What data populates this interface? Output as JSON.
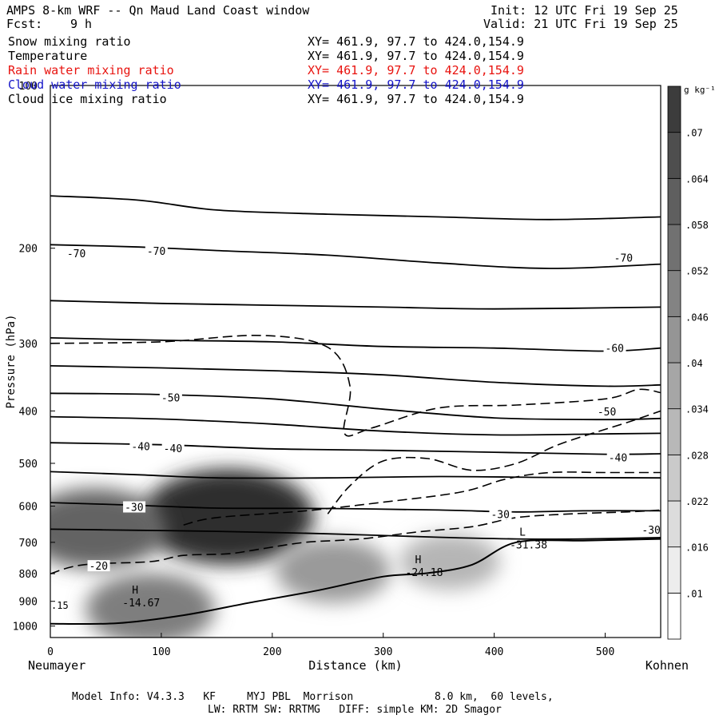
{
  "header": {
    "title": "AMPS 8-km WRF -- Qn Maud Land Coast window",
    "fcst_label": "Fcst:",
    "fcst_value": "9 h",
    "init": "Init: 12 UTC Fri 19 Sep 25",
    "valid": "Valid: 21 UTC Fri 19 Sep 25"
  },
  "fields": [
    {
      "label": "Snow mixing ratio",
      "xy": "XY= 461.9, 97.7 to 424.0,154.9",
      "color": "#000000"
    },
    {
      "label": "Temperature",
      "xy": "XY= 461.9, 97.7 to 424.0,154.9",
      "color": "#000000"
    },
    {
      "label": "Rain water mixing ratio",
      "xy": "XY= 461.9, 97.7 to 424.0,154.9",
      "color": "#e8130f"
    },
    {
      "label": "Cloud water mixing ratio",
      "xy": "XY= 461.9, 97.7 to 424.0,154.9",
      "color": "#1414c8"
    },
    {
      "label": "Cloud ice mixing ratio",
      "xy": "XY= 461.9, 97.7 to 424.0,154.9",
      "color": "#000000"
    }
  ],
  "footer": {
    "line1": "Model Info: V4.3.3   KF     MYJ PBL  Morrison             8.0 km,  60 levels,",
    "line2": "LW: RRTM SW: RRTMG   DIFF: simple KM: 2D Smagor"
  },
  "chart_data": {
    "type": "cross-section",
    "xlabel": "Distance (km)",
    "ylabel": "Pressure (hPa)",
    "xlim": [
      0,
      550
    ],
    "ylim": [
      1050,
      100
    ],
    "x_ticks": [
      0,
      100,
      200,
      300,
      400,
      500
    ],
    "y_ticks": [
      100,
      200,
      300,
      400,
      500,
      600,
      700,
      800,
      900,
      1000
    ],
    "left_end_label": "Neumayer",
    "right_end_label": "Kohnen",
    "colorbar": {
      "unit": "g kg⁻¹",
      "ticks": [
        ".01",
        ".016",
        ".022",
        ".028",
        ".034",
        ".04",
        ".046",
        ".052",
        ".058",
        ".064",
        ".07"
      ]
    },
    "temperature_isotherms": [
      {
        "value": -70,
        "points": [
          [
            0,
            160
          ],
          [
            80,
            163
          ],
          [
            150,
            170
          ],
          [
            250,
            173
          ],
          [
            350,
            175
          ],
          [
            450,
            177
          ],
          [
            550,
            175
          ]
        ]
      },
      {
        "value": -70,
        "points": [
          [
            0,
            197
          ],
          [
            80,
            199
          ],
          [
            150,
            202
          ],
          [
            250,
            206
          ],
          [
            350,
            213
          ],
          [
            450,
            218
          ],
          [
            550,
            214
          ]
        ]
      },
      {
        "value": -70,
        "points": [
          [
            0,
            250
          ],
          [
            100,
            253
          ],
          [
            200,
            255
          ],
          [
            300,
            257
          ],
          [
            400,
            259
          ],
          [
            550,
            257
          ]
        ]
      },
      {
        "value": -60,
        "points": [
          [
            0,
            293
          ],
          [
            100,
            296
          ],
          [
            200,
            298
          ],
          [
            300,
            304
          ],
          [
            400,
            306
          ],
          [
            500,
            310
          ],
          [
            550,
            306
          ]
        ]
      },
      {
        "value": -60,
        "points": [
          [
            0,
            330
          ],
          [
            100,
            333
          ],
          [
            200,
            337
          ],
          [
            300,
            343
          ],
          [
            400,
            354
          ],
          [
            500,
            360
          ],
          [
            550,
            358
          ]
        ]
      },
      {
        "value": -50,
        "points": [
          [
            0,
            371
          ],
          [
            100,
            373
          ],
          [
            200,
            380
          ],
          [
            300,
            397
          ],
          [
            400,
            412
          ],
          [
            500,
            415
          ],
          [
            550,
            413
          ]
        ]
      },
      {
        "value": -50,
        "points": [
          [
            0,
            410
          ],
          [
            100,
            414
          ],
          [
            200,
            423
          ],
          [
            300,
            436
          ],
          [
            400,
            443
          ],
          [
            500,
            441
          ],
          [
            550,
            440
          ]
        ]
      },
      {
        "value": -40,
        "points": [
          [
            0,
            458
          ],
          [
            100,
            462
          ],
          [
            200,
            470
          ],
          [
            300,
            473
          ],
          [
            400,
            477
          ],
          [
            500,
            481
          ],
          [
            550,
            480
          ]
        ]
      },
      {
        "value": -40,
        "points": [
          [
            0,
            518
          ],
          [
            80,
            525
          ],
          [
            150,
            532
          ],
          [
            250,
            532
          ],
          [
            350,
            529
          ],
          [
            450,
            531
          ],
          [
            550,
            532
          ]
        ]
      },
      {
        "value": -30,
        "points": [
          [
            0,
            591
          ],
          [
            80,
            598
          ],
          [
            150,
            605
          ],
          [
            250,
            606
          ],
          [
            350,
            610
          ],
          [
            420,
            615
          ],
          [
            480,
            612
          ],
          [
            550,
            612
          ]
        ]
      },
      {
        "value": -30,
        "points": [
          [
            0,
            662
          ],
          [
            80,
            665
          ],
          [
            150,
            668
          ],
          [
            250,
            675
          ],
          [
            350,
            685
          ],
          [
            420,
            690
          ],
          [
            480,
            690
          ],
          [
            550,
            686
          ]
        ]
      }
    ],
    "isotherm_labels": [
      {
        "text": "-70",
        "x": 15,
        "p": 205
      },
      {
        "text": "-70",
        "x": 87,
        "p": 203
      },
      {
        "text": "-70",
        "x": 508,
        "p": 209
      },
      {
        "text": "-60",
        "x": 500,
        "p": 307
      },
      {
        "text": "-50",
        "x": 100,
        "p": 379
      },
      {
        "text": "-50",
        "x": 493,
        "p": 402
      },
      {
        "text": "-40",
        "x": 73,
        "p": 466
      },
      {
        "text": "-40",
        "x": 102,
        "p": 470
      },
      {
        "text": "-40",
        "x": 503,
        "p": 489
      },
      {
        "text": "-30",
        "x": 67,
        "p": 604
      },
      {
        "text": "-30",
        "x": 397,
        "p": 623
      },
      {
        "text": "-30",
        "x": 533,
        "p": 666
      },
      {
        "text": "-20",
        "x": 35,
        "p": 776
      }
    ],
    "cloud_contours": [
      [
        [
          0,
          300
        ],
        [
          100,
          298
        ],
        [
          190,
          290
        ],
        [
          250,
          305
        ],
        [
          270,
          360
        ],
        [
          265,
          440
        ],
        [
          290,
          430
        ],
        [
          350,
          395
        ],
        [
          420,
          390
        ],
        [
          500,
          380
        ],
        [
          530,
          365
        ],
        [
          550,
          370
        ]
      ],
      [
        [
          250,
          620
        ],
        [
          270,
          550
        ],
        [
          300,
          495
        ],
        [
          340,
          490
        ],
        [
          380,
          515
        ],
        [
          420,
          500
        ],
        [
          460,
          460
        ],
        [
          520,
          420
        ],
        [
          550,
          400
        ]
      ],
      [
        [
          120,
          650
        ],
        [
          150,
          630
        ],
        [
          230,
          612
        ],
        [
          300,
          590
        ],
        [
          370,
          565
        ],
        [
          410,
          535
        ],
        [
          450,
          520
        ],
        [
          500,
          520
        ],
        [
          550,
          520
        ]
      ],
      [
        [
          0,
          800
        ],
        [
          30,
          770
        ],
        [
          90,
          760
        ],
        [
          120,
          740
        ],
        [
          160,
          735
        ],
        [
          190,
          720
        ],
        [
          230,
          700
        ],
        [
          280,
          690
        ],
        [
          330,
          670
        ],
        [
          380,
          655
        ],
        [
          420,
          630
        ],
        [
          470,
          620
        ],
        [
          520,
          615
        ],
        [
          550,
          610
        ]
      ]
    ],
    "terrain_line": [
      [
        0,
        990
      ],
      [
        60,
        988
      ],
      [
        120,
        955
      ],
      [
        180,
        905
      ],
      [
        240,
        860
      ],
      [
        300,
        810
      ],
      [
        340,
        798
      ],
      [
        380,
        770
      ],
      [
        420,
        700
      ],
      [
        480,
        695
      ],
      [
        550,
        690
      ]
    ],
    "highs_lows": [
      {
        "marker": "H",
        "value": "-14.67",
        "x": 65,
        "p": 882
      },
      {
        "marker": "H",
        "value": "-24.18",
        "x": 320,
        "p": 775
      },
      {
        "marker": "L",
        "value": "-31.38",
        "x": 414,
        "p": 690
      }
    ],
    "corner_value": ".15",
    "shading_blobs": [
      {
        "x": 160,
        "p": 628,
        "amount": 0.07
      },
      {
        "x": 40,
        "p": 660,
        "amount": 0.05
      },
      {
        "x": 90,
        "p": 930,
        "amount": 0.04
      },
      {
        "x": 255,
        "p": 790,
        "amount": 0.03
      },
      {
        "x": 360,
        "p": 760,
        "amount": 0.02
      }
    ]
  }
}
